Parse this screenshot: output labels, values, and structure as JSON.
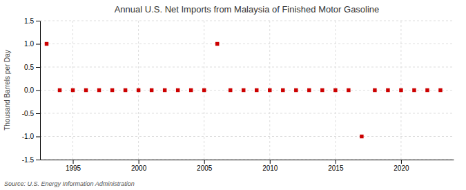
{
  "chart_data": {
    "type": "scatter",
    "title": "Annual U.S. Net Imports from Malaysia of Finished Motor Gasoline",
    "ylabel": "Thousand Barrels per Day",
    "source": "Source: U.S. Energy Information Administration",
    "x": [
      1993,
      1994,
      1995,
      1996,
      1997,
      1998,
      1999,
      2000,
      2001,
      2002,
      2003,
      2004,
      2005,
      2006,
      2007,
      2008,
      2009,
      2010,
      2011,
      2012,
      2013,
      2014,
      2015,
      2016,
      2017,
      2018,
      2019,
      2020,
      2021,
      2022,
      2023
    ],
    "values": [
      1.0,
      0,
      0,
      0,
      0,
      0,
      0,
      0,
      0,
      0,
      0,
      0,
      0,
      1.0,
      0,
      0,
      0,
      0,
      0,
      0,
      0,
      0,
      0,
      0,
      -1.0,
      0,
      0,
      0,
      0,
      0,
      0
    ],
    "color": "#cc0000",
    "marker": "square",
    "grid": true,
    "xlim": [
      1992.5,
      2024
    ],
    "ylim": [
      -1.5,
      1.5
    ],
    "xticks": [
      1995,
      2000,
      2005,
      2010,
      2015,
      2020
    ],
    "yticks": [
      -1.5,
      {
        "value": -1.0,
        "label": "-1.0"
      },
      -0.5,
      {
        "value": 0.0,
        "label": "0.0"
      },
      0.5,
      {
        "value": 1.0,
        "label": "1.0"
      },
      1.5
    ]
  }
}
